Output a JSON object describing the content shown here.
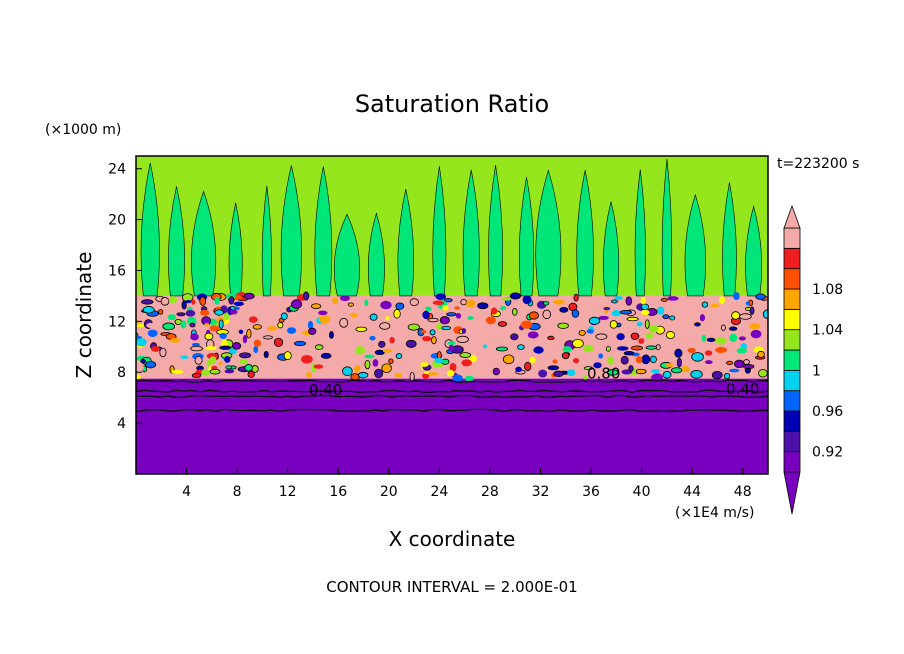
{
  "chart_data": {
    "type": "heatmap",
    "title": "Saturation Ratio",
    "xlabel": "X coordinate",
    "ylabel": "Z coordinate",
    "x_unit": "(×1E4 m/s)",
    "y_unit": "(×1000 m)",
    "time_label": "t=223200 s",
    "footer": "CONTOUR INTERVAL = 2.000E-01",
    "xlim": [
      0,
      50
    ],
    "ylim": [
      0,
      25
    ],
    "x_ticks": [
      4,
      8,
      12,
      16,
      20,
      24,
      28,
      32,
      36,
      40,
      44,
      48
    ],
    "y_ticks": [
      4,
      8,
      12,
      16,
      20,
      24
    ],
    "contour_labels": [
      {
        "text": "0.40",
        "x": 15,
        "y": 6.2
      },
      {
        "text": "0.80",
        "x": 37,
        "y": 7.5
      },
      {
        "text": "0.40",
        "x": 48,
        "y": 6.3
      }
    ],
    "colorbar": {
      "tick_labels": [
        "0.92",
        "0.96",
        "1",
        "1.04",
        "1.08"
      ],
      "bands": [
        {
          "color": "#7a00c0"
        },
        {
          "color": "#4a10a8"
        },
        {
          "color": "#0000b4"
        },
        {
          "color": "#0064ff"
        },
        {
          "color": "#00d2f0"
        },
        {
          "color": "#00e678"
        },
        {
          "color": "#96e61e"
        },
        {
          "color": "#ffff00"
        },
        {
          "color": "#ffa500"
        },
        {
          "color": "#ff5000"
        },
        {
          "color": "#f01e1e"
        },
        {
          "color": "#f5aaaa"
        }
      ]
    },
    "layers": [
      {
        "name": "lower",
        "z_range": [
          0,
          7.5
        ],
        "color": "#7a00c0"
      },
      {
        "name": "cloud",
        "z_range": [
          7.5,
          14
        ],
        "color": "#f5aaaa"
      },
      {
        "name": "upper",
        "z_range": [
          14,
          25
        ],
        "color": "#96e61e"
      }
    ]
  }
}
